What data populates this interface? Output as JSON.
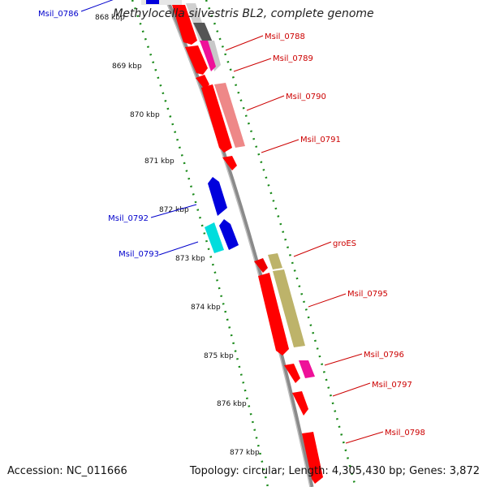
{
  "title": "Methylocella silvestris BL2, complete genome",
  "footer": {
    "accession": "Accession: NC_011666",
    "summary": "Topology: circular; Length: 4,305,430 bp; Genes: 3,872"
  },
  "colors": {
    "backbone": "#8a8a8a",
    "tick_dots": "#1a8a1a",
    "forward_label": "#cc0000",
    "reverse_label": "#0000cc"
  },
  "ticks": [
    "868 kbp",
    "869 kbp",
    "870 kbp",
    "871 kbp",
    "872 kbp",
    "873 kbp",
    "874 kbp",
    "875 kbp",
    "876 kbp",
    "877 kbp"
  ],
  "labels": [
    {
      "text": "Msil_0786",
      "strand": "reverse"
    },
    {
      "text": "Msil_0788",
      "strand": "forward"
    },
    {
      "text": "Msil_0789",
      "strand": "forward"
    },
    {
      "text": "Msil_0790",
      "strand": "forward"
    },
    {
      "text": "Msil_0791",
      "strand": "forward"
    },
    {
      "text": "Msil_0792",
      "strand": "reverse"
    },
    {
      "text": "Msil_0793",
      "strand": "reverse"
    },
    {
      "text": "groES",
      "strand": "forward"
    },
    {
      "text": "Msil_0795",
      "strand": "forward"
    },
    {
      "text": "Msil_0796",
      "strand": "forward"
    },
    {
      "text": "Msil_0797",
      "strand": "forward"
    },
    {
      "text": "Msil_0798",
      "strand": "forward"
    }
  ]
}
